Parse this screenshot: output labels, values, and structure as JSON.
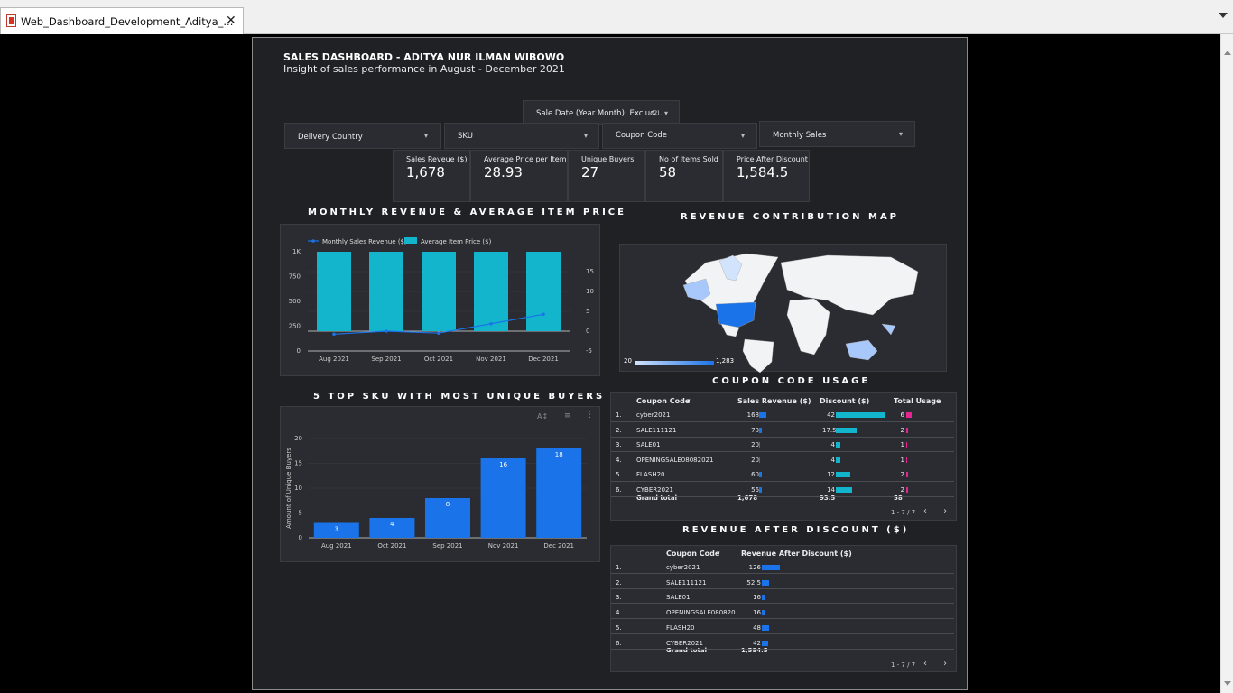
{
  "tab": {
    "title": "Web_Dashboard_Development_Aditya_...",
    "close": "✕"
  },
  "dashboard": {
    "title": "SALES DASHBOARD - ADITYA NUR ILMAN WIBOWO",
    "subtitle": "Insight of sales performance in August - December 2021"
  },
  "filters": {
    "sale_date": "Sale Date (Year Month): Exclud...",
    "sale_date_count": "(2)",
    "delivery_country": "Delivery Country",
    "sku": "SKU",
    "coupon_code": "Coupon Code",
    "monthly_sales": "Monthly Sales"
  },
  "kpis": [
    {
      "label": "Sales Reveue ($)",
      "value": "1,678"
    },
    {
      "label": "Average Price per Item ($)",
      "value": "28.93"
    },
    {
      "label": "Unique Buyers",
      "value": "27"
    },
    {
      "label": "No of Items Sold",
      "value": "58"
    },
    {
      "label": "Price After Discount",
      "value": "1,584.5"
    }
  ],
  "sections": {
    "monthly": "MONTHLY REVENUE & AVERAGE ITEM PRICE",
    "map": "REVENUE CONTRIBUTION MAP",
    "sku": "5 TOP SKU WITH MOST UNIQUE BUYERS",
    "coupon": "COUPON CODE USAGE",
    "revenue_after": "REVENUE AFTER DISCOUNT ($)"
  },
  "map_legend": {
    "min": "20",
    "max": "1,283"
  },
  "coupon_table": {
    "headers": [
      "Coupon Code",
      "Sales Revenue ($)",
      "Discount ($)",
      "Total Usage"
    ],
    "rows": [
      {
        "n": "1.",
        "code": "cyber2021",
        "rev": "168",
        "disc": "42",
        "use": "6",
        "rev_v": 168,
        "disc_v": 42,
        "use_v": 6
      },
      {
        "n": "2.",
        "code": "SALE111121",
        "rev": "70",
        "disc": "17.5",
        "use": "2",
        "rev_v": 70,
        "disc_v": 17.5,
        "use_v": 2
      },
      {
        "n": "3.",
        "code": "SALE01",
        "rev": "20",
        "disc": "4",
        "use": "1",
        "rev_v": 20,
        "disc_v": 4,
        "use_v": 1
      },
      {
        "n": "4.",
        "code": "OPENINGSALE08082021",
        "rev": "20",
        "disc": "4",
        "use": "1",
        "rev_v": 20,
        "disc_v": 4,
        "use_v": 1
      },
      {
        "n": "5.",
        "code": "FLASH20",
        "rev": "60",
        "disc": "12",
        "use": "2",
        "rev_v": 60,
        "disc_v": 12,
        "use_v": 2
      },
      {
        "n": "6.",
        "code": "CYBER2021",
        "rev": "56",
        "disc": "14",
        "use": "2",
        "rev_v": 56,
        "disc_v": 14,
        "use_v": 2
      }
    ],
    "total_label": "Grand total",
    "total_rev": "1,678",
    "total_disc": "93.5",
    "total_use": "58",
    "pager": "1 - 7 / 7"
  },
  "revenue_table": {
    "headers": [
      "Coupon Code",
      "Revenue After Discount ($)"
    ],
    "rows": [
      {
        "n": "1.",
        "code": "cyber2021",
        "val": "126",
        "v": 126
      },
      {
        "n": "2.",
        "code": "SALE111121",
        "val": "52.5",
        "v": 52.5
      },
      {
        "n": "3.",
        "code": "SALE01",
        "val": "16",
        "v": 16
      },
      {
        "n": "4.",
        "code": "OPENINGSALE080820...",
        "val": "16",
        "v": 16
      },
      {
        "n": "5.",
        "code": "FLASH20",
        "val": "48",
        "v": 48
      },
      {
        "n": "6.",
        "code": "CYBER2021",
        "val": "42",
        "v": 42
      }
    ],
    "total_label": "Grand total",
    "total_val": "1,584.5",
    "pager": "1 - 7 / 7"
  },
  "colors": {
    "teal": "#12b5cb",
    "blue": "#1a73e8",
    "pink": "#e52592",
    "map_high": "#1a73e8",
    "map_low": "#d2e3fc"
  },
  "chart_data": [
    {
      "type": "bar",
      "title": "MONTHLY REVENUE & AVERAGE ITEM PRICE",
      "categories": [
        "Aug 2021",
        "Sep 2021",
        "Oct 2021",
        "Nov 2021",
        "Dec 2021"
      ],
      "series": [
        {
          "name": "Monthly Sales Revenue ($)",
          "type": "line",
          "axis": "left",
          "values": [
            -30,
            0,
            -20,
            75,
            170
          ]
        },
        {
          "name": "Average Item Price ($)",
          "type": "bar",
          "axis": "right",
          "values": [
            20,
            20,
            20,
            20,
            20
          ]
        }
      ],
      "yleft_ticks": [
        "0",
        "250",
        "500",
        "750",
        "1K"
      ],
      "yright_ticks": [
        "-5",
        "0",
        "5",
        "10",
        "15"
      ],
      "legend": "top-left"
    },
    {
      "type": "bar",
      "title": "5 TOP SKU WITH MOST UNIQUE BUYERS",
      "categories": [
        "Aug 2021",
        "Oct 2021",
        "Sep 2021",
        "Nov 2021",
        "Dec 2021"
      ],
      "values": [
        3,
        4,
        8,
        16,
        18
      ],
      "ylabel": "Amount of Unique Buyers",
      "ylim": [
        0,
        20
      ],
      "yticks": [
        "0",
        "5",
        "10",
        "15",
        "20"
      ]
    }
  ]
}
